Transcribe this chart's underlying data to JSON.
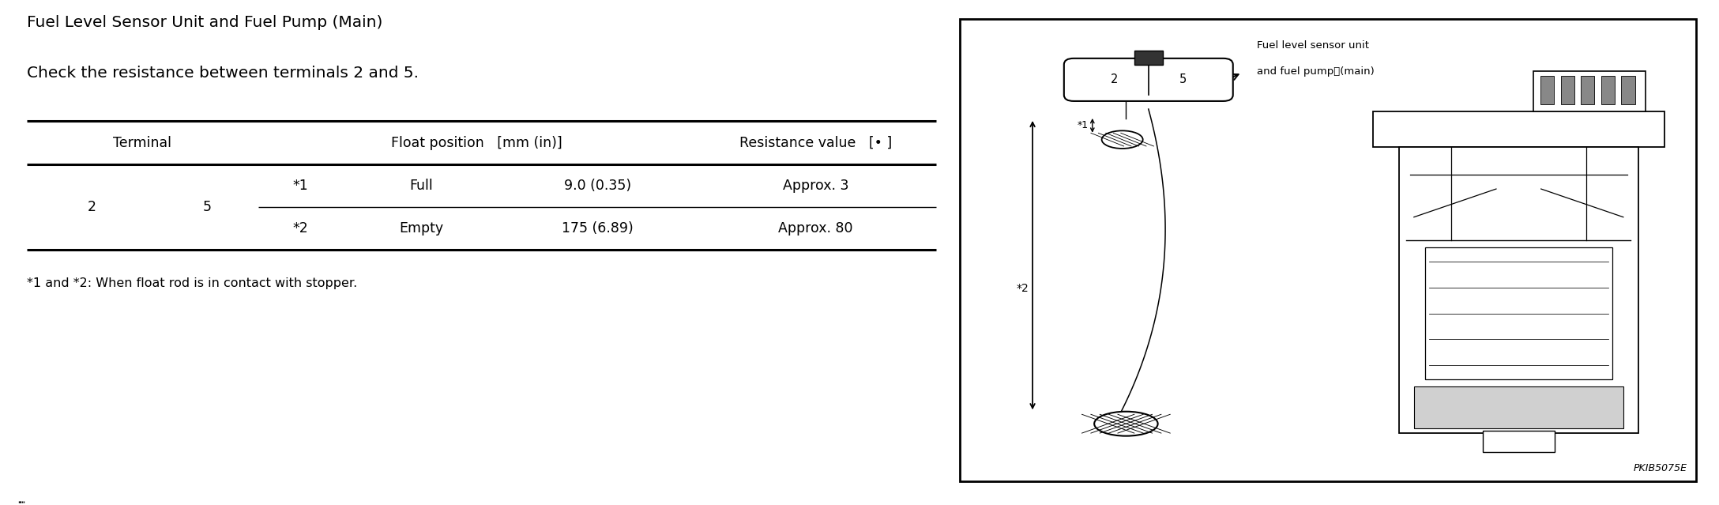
{
  "title_line1": "Fuel Level Sensor Unit and Fuel Pump (Main)",
  "title_line2": "Check the resistance between terminals 2 and 5.",
  "footnote": "*1 and *2: When float rod is in contact with stopper.",
  "diagram_label_top": "Fuel level sensor unit",
  "diagram_label_bottom": "and fuel pump　(main)",
  "diagram_code": "PKIB5075E",
  "bg_color": "#ffffff",
  "text_color": "#000000",
  "title_fontsize": 14.5,
  "body_fontsize": 12.5,
  "footnote_fontsize": 11.5
}
